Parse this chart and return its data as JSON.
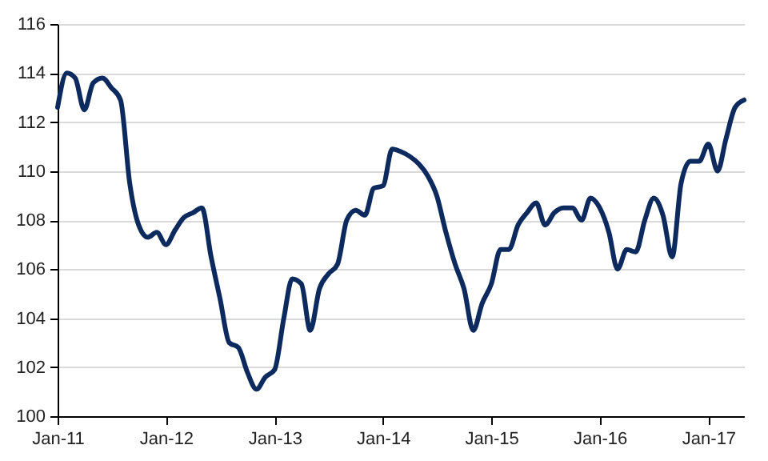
{
  "chart_data": {
    "type": "line",
    "x": [
      "2011-01",
      "2011-02",
      "2011-03",
      "2011-04",
      "2011-05",
      "2011-06",
      "2011-07",
      "2011-08",
      "2011-09",
      "2011-10",
      "2011-11",
      "2011-12",
      "2012-01",
      "2012-02",
      "2012-03",
      "2012-04",
      "2012-05",
      "2012-06",
      "2012-07",
      "2012-08",
      "2012-09",
      "2012-10",
      "2012-11",
      "2012-12",
      "2013-01",
      "2013-02",
      "2013-03",
      "2013-04",
      "2013-05",
      "2013-06",
      "2013-07",
      "2013-08",
      "2013-09",
      "2013-10",
      "2013-11",
      "2013-12",
      "2014-01",
      "2014-02",
      "2014-03",
      "2014-04",
      "2014-05",
      "2014-06",
      "2014-07",
      "2014-08",
      "2014-09",
      "2014-10",
      "2014-11",
      "2014-12",
      "2015-01",
      "2015-02",
      "2015-03",
      "2015-04",
      "2015-05",
      "2015-06",
      "2015-07",
      "2015-08",
      "2015-09",
      "2015-10",
      "2015-11",
      "2015-12",
      "2016-01",
      "2016-02",
      "2016-03",
      "2016-04",
      "2016-05",
      "2016-06",
      "2016-07",
      "2016-08",
      "2016-09",
      "2016-10",
      "2016-11",
      "2016-12",
      "2017-01",
      "2017-02",
      "2017-03",
      "2017-04",
      "2017-05"
    ],
    "series": [
      {
        "color": "#0d2a5e",
        "values": [
          112.6,
          114.0,
          113.8,
          112.5,
          113.6,
          113.8,
          113.4,
          112.9,
          109.5,
          107.8,
          107.3,
          107.5,
          107.0,
          107.6,
          108.1,
          108.3,
          108.5,
          106.5,
          104.8,
          103.0,
          102.8,
          101.8,
          101.1,
          101.6,
          101.9,
          104.0,
          105.6,
          105.4,
          103.5,
          105.2,
          105.8,
          106.2,
          108.0,
          108.4,
          108.2,
          109.3,
          109.4,
          110.9,
          110.8,
          110.6,
          110.3,
          109.8,
          109.0,
          107.5,
          106.2,
          105.2,
          103.5,
          104.6,
          105.4,
          106.8,
          106.8,
          107.8,
          108.3,
          108.7,
          107.8,
          108.3,
          108.5,
          108.5,
          108.0,
          108.9,
          108.5,
          107.5,
          106.0,
          106.8,
          106.7,
          108.0,
          108.9,
          108.2,
          106.5,
          109.5,
          110.4,
          110.4,
          111.1,
          110.0,
          111.3,
          112.6,
          112.9
        ]
      }
    ],
    "xlim": [
      "2011-01",
      "2017-05"
    ],
    "xticks": [
      {
        "value": "2011-01",
        "label": "Jan-11"
      },
      {
        "value": "2012-01",
        "label": "Jan-12"
      },
      {
        "value": "2013-01",
        "label": "Jan-13"
      },
      {
        "value": "2014-01",
        "label": "Jan-14"
      },
      {
        "value": "2015-01",
        "label": "Jan-15"
      },
      {
        "value": "2016-01",
        "label": "Jan-16"
      },
      {
        "value": "2017-01",
        "label": "Jan-17"
      }
    ],
    "ylim": [
      100,
      116
    ],
    "yticks": [
      100,
      102,
      104,
      106,
      108,
      110,
      112,
      114,
      116
    ],
    "grid": "y",
    "line_style": "solid",
    "marker": "none"
  }
}
